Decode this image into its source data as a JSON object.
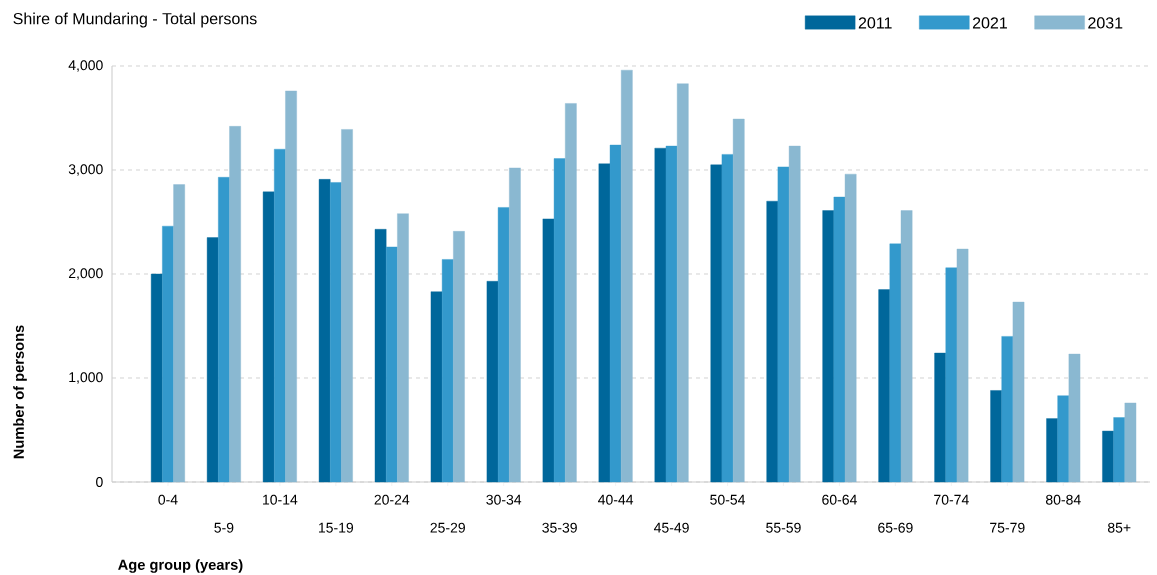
{
  "chart_data": {
    "type": "bar",
    "title": "Shire of Mundaring - Total persons",
    "xlabel": "Age group (years)",
    "ylabel": "Number of persons",
    "categories": [
      "0-4",
      "5-9",
      "10-14",
      "15-19",
      "20-24",
      "25-29",
      "30-34",
      "35-39",
      "40-44",
      "45-49",
      "50-54",
      "55-59",
      "60-64",
      "65-69",
      "70-74",
      "75-79",
      "80-84",
      "85+"
    ],
    "series": [
      {
        "name": "2011",
        "color": "#00679b",
        "values": [
          2000,
          2350,
          2790,
          2910,
          2430,
          1830,
          1930,
          2530,
          3060,
          3210,
          3050,
          2700,
          2610,
          1850,
          1240,
          880,
          610,
          490
        ]
      },
      {
        "name": "2021",
        "color": "#3399cc",
        "values": [
          2460,
          2930,
          3200,
          2880,
          2260,
          2140,
          2640,
          3110,
          3240,
          3230,
          3150,
          3030,
          2740,
          2290,
          2060,
          1400,
          830,
          620
        ]
      },
      {
        "name": "2031",
        "color": "#8ab8d1",
        "values": [
          2860,
          3420,
          3760,
          3390,
          2580,
          2410,
          3020,
          3640,
          3960,
          3830,
          3490,
          3230,
          2960,
          2610,
          2240,
          1730,
          1230,
          760
        ]
      }
    ],
    "ylim": [
      0,
      4000
    ],
    "yticks": [
      0,
      {
        "value": 1000,
        "label": "1,000"
      },
      {
        "value": 2000,
        "label": "2,000"
      },
      {
        "value": 3000,
        "label": "3,000"
      },
      {
        "value": 4000,
        "label": "4,000"
      }
    ],
    "grid": "y",
    "legend": "top right"
  }
}
